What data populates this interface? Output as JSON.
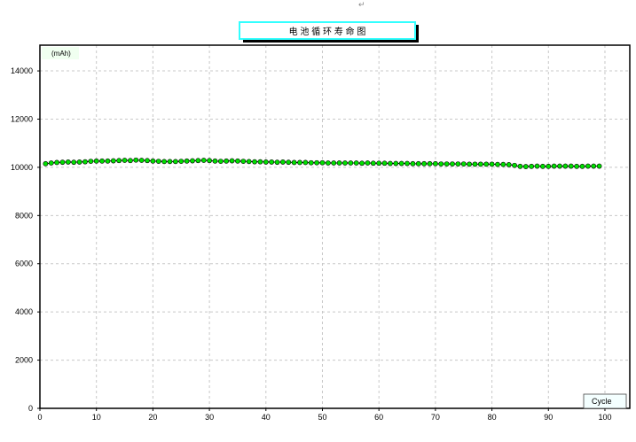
{
  "top_mark": "↵",
  "chart_data": {
    "type": "line",
    "title": "电 池 循 环 寿 命 图",
    "ylabel": "(mAh)",
    "xlabel": "Cycle",
    "xlim": [
      0,
      104.4
    ],
    "ylim": [
      0,
      15068
    ],
    "xticks": [
      0,
      10,
      20,
      30,
      40,
      50,
      60,
      70,
      80,
      90,
      100
    ],
    "yticks": [
      0,
      2000,
      4000,
      6000,
      8000,
      10000,
      12000,
      14000
    ],
    "grid": true,
    "marker_color": "#00e000",
    "title_border_color": "#33ffff",
    "x": [
      1,
      2,
      3,
      4,
      5,
      6,
      7,
      8,
      9,
      10,
      11,
      12,
      13,
      14,
      15,
      16,
      17,
      18,
      19,
      20,
      21,
      22,
      23,
      24,
      25,
      26,
      27,
      28,
      29,
      30,
      31,
      32,
      33,
      34,
      35,
      36,
      37,
      38,
      39,
      40,
      41,
      42,
      43,
      44,
      45,
      46,
      47,
      48,
      49,
      50,
      51,
      52,
      53,
      54,
      55,
      56,
      57,
      58,
      59,
      60,
      61,
      62,
      63,
      64,
      65,
      66,
      67,
      68,
      69,
      70,
      71,
      72,
      73,
      74,
      75,
      76,
      77,
      78,
      79,
      80,
      81,
      82,
      83,
      84,
      85,
      86,
      87,
      88,
      89,
      90,
      91,
      92,
      93,
      94,
      95,
      96,
      97,
      98,
      99
    ],
    "values": [
      10150,
      10180,
      10200,
      10210,
      10220,
      10210,
      10220,
      10230,
      10250,
      10260,
      10260,
      10260,
      10270,
      10280,
      10290,
      10280,
      10300,
      10290,
      10280,
      10260,
      10250,
      10240,
      10240,
      10240,
      10250,
      10260,
      10270,
      10280,
      10290,
      10280,
      10260,
      10250,
      10260,
      10270,
      10260,
      10250,
      10240,
      10230,
      10230,
      10220,
      10220,
      10210,
      10220,
      10210,
      10200,
      10200,
      10200,
      10190,
      10190,
      10190,
      10180,
      10180,
      10180,
      10180,
      10180,
      10180,
      10170,
      10180,
      10170,
      10170,
      10170,
      10160,
      10160,
      10160,
      10160,
      10150,
      10150,
      10150,
      10150,
      10150,
      10140,
      10140,
      10140,
      10140,
      10140,
      10130,
      10130,
      10130,
      10130,
      10130,
      10120,
      10120,
      10110,
      10080,
      10040,
      10030,
      10040,
      10050,
      10040,
      10040,
      10050,
      10050,
      10050,
      10050,
      10040,
      10040,
      10050,
      10050,
      10050
    ]
  }
}
